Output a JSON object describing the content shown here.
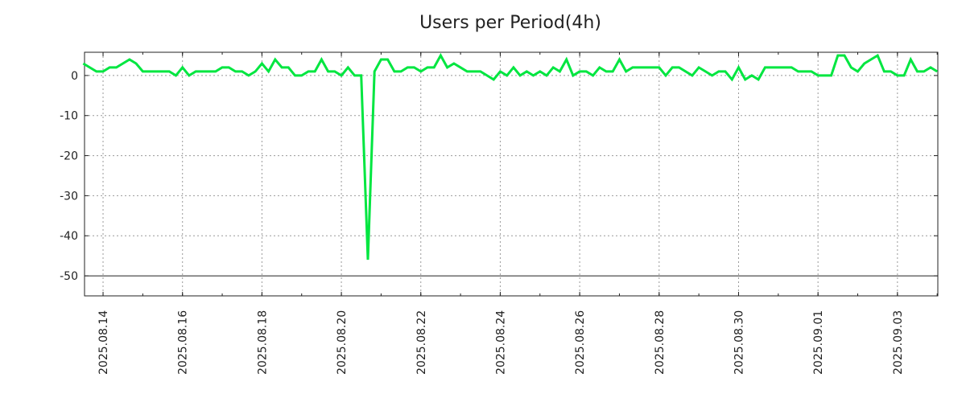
{
  "chart_data": {
    "type": "line",
    "title": "Users per Period(4h)",
    "xlabel": "",
    "ylabel": "",
    "x_unit": "hours since 2025.08.14 00:00",
    "xlim": [
      -11.2,
      504.4
    ],
    "ylim": [
      -55,
      5.8
    ],
    "grid": true,
    "line_color": "#00e640",
    "x_tick_hours": [
      0,
      48,
      96,
      144,
      192,
      240,
      288,
      336,
      384,
      432,
      480
    ],
    "x_tick_labels": [
      "2025.08.14",
      "2025.08.16",
      "2025.08.18",
      "2025.08.20",
      "2025.08.22",
      "2025.08.24",
      "2025.08.26",
      "2025.08.28",
      "2025.08.30",
      "2025.09.01",
      "2025.09.03"
    ],
    "y_ticks": [
      0,
      -10,
      -20,
      -30,
      -40,
      -50
    ],
    "y_tick_labels": [
      "0",
      "-10",
      "-20",
      "-30",
      "-40",
      "-50"
    ],
    "series": [
      {
        "name": "Users",
        "x": [
          -12,
          -4,
          0,
          4,
          8,
          16,
          20,
          24,
          40,
          44,
          48,
          52,
          56,
          68,
          72,
          76,
          80,
          84,
          88,
          92,
          96,
          100,
          104,
          108,
          112,
          116,
          120,
          124,
          128,
          132,
          136,
          140,
          144,
          148,
          152,
          156,
          160,
          164,
          168,
          172,
          176,
          180,
          184,
          188,
          192,
          196,
          200,
          204,
          208,
          212,
          216,
          220,
          228,
          232,
          236,
          240,
          244,
          248,
          252,
          256,
          260,
          264,
          268,
          272,
          276,
          280,
          284,
          288,
          292,
          296,
          300,
          304,
          308,
          312,
          316,
          320,
          336,
          340,
          344,
          348,
          356,
          360,
          364,
          368,
          372,
          376,
          380,
          384,
          388,
          392,
          396,
          400,
          416,
          420,
          428,
          432,
          440,
          444,
          448,
          452,
          456,
          460,
          464,
          468,
          472,
          476,
          480,
          484,
          488,
          492,
          496,
          500,
          504
        ],
        "y": [
          3,
          1,
          1,
          2,
          2,
          4,
          3,
          1,
          1,
          0,
          2,
          0,
          1,
          1,
          2,
          2,
          1,
          1,
          0,
          1,
          3,
          1,
          4,
          2,
          2,
          0,
          0,
          1,
          1,
          4,
          1,
          1,
          0,
          2,
          0,
          0,
          -46,
          1,
          4,
          4,
          1,
          1,
          2,
          2,
          1,
          2,
          2,
          5,
          2,
          3,
          2,
          1,
          1,
          0,
          -1,
          1,
          0,
          2,
          0,
          1,
          0,
          1,
          0,
          2,
          1,
          4,
          0,
          1,
          1,
          0,
          2,
          1,
          1,
          4,
          1,
          2,
          2,
          0,
          2,
          2,
          0,
          2,
          1,
          0,
          1,
          1,
          -1,
          2,
          -1,
          0,
          -1,
          2,
          2,
          1,
          1,
          0,
          0,
          5,
          5,
          2,
          1,
          3,
          4,
          5,
          1,
          1,
          0,
          0,
          4,
          1,
          1,
          2,
          1
        ]
      }
    ]
  }
}
